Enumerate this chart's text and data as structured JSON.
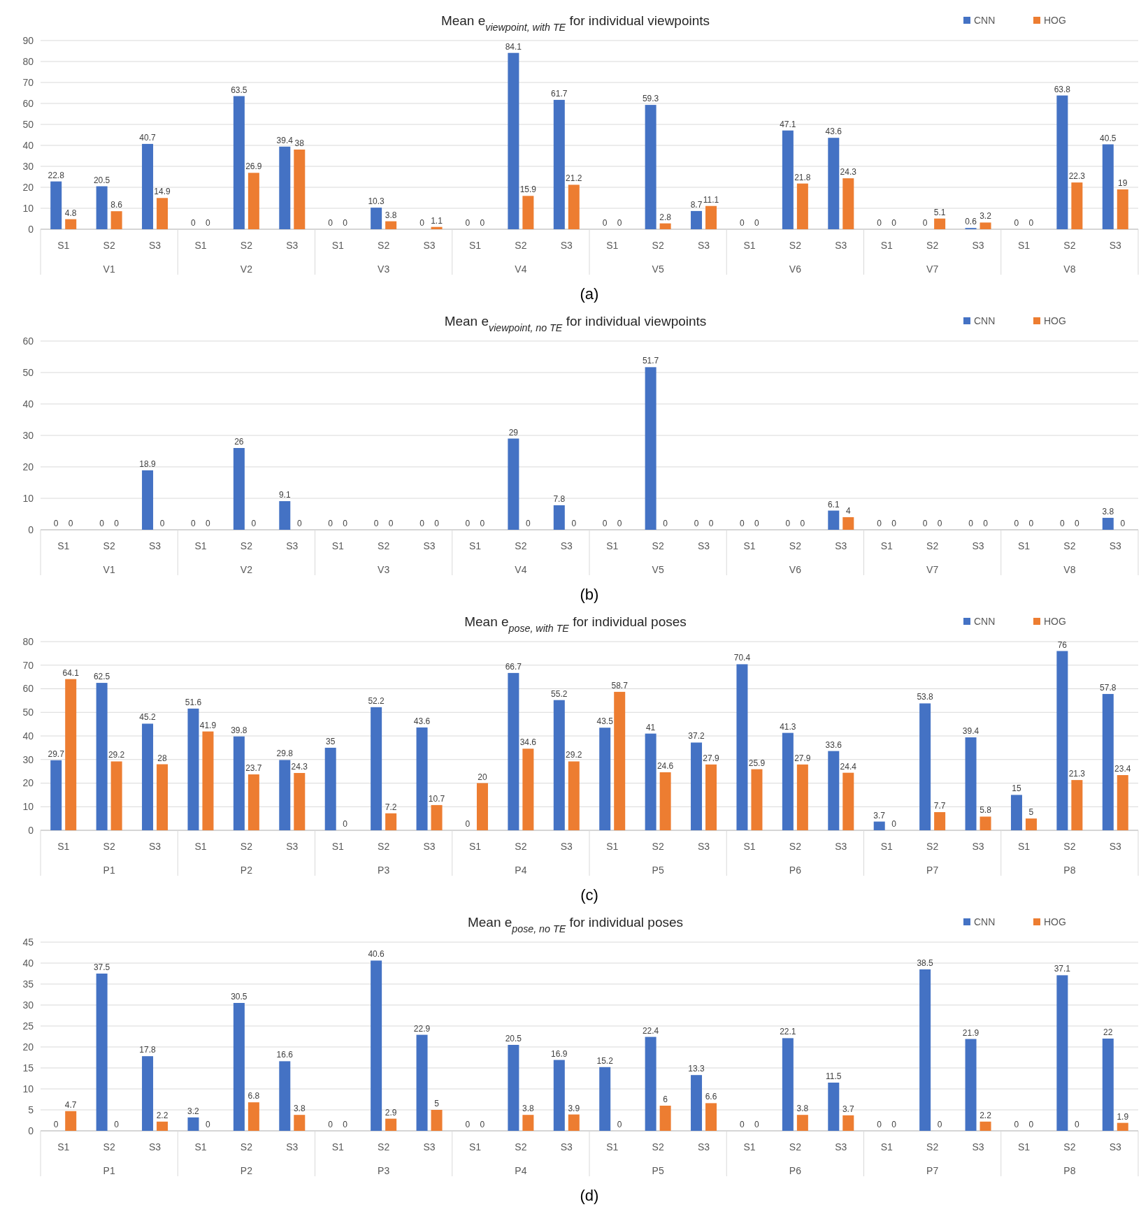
{
  "chart_data": [
    {
      "type": "bar",
      "title": "Mean e$_{viewpoint, with TE}$ for individual viewpoints",
      "categories": [
        "S1",
        "S2",
        "S3",
        "S1",
        "S2",
        "S3",
        "S1",
        "S2",
        "S3",
        "S1",
        "S2",
        "S3",
        "S1",
        "S2",
        "S3",
        "S1",
        "S2",
        "S3",
        "S1",
        "S2",
        "S3",
        "S1",
        "S2",
        "S3"
      ],
      "series": [
        {
          "name": "CNN",
          "color": "#4472c4",
          "values": [
            22.8,
            20.5,
            40.7,
            0,
            63.5,
            39.4,
            0,
            10.3,
            0,
            0,
            84.1,
            61.7,
            0,
            59.3,
            8.7,
            0,
            47.1,
            43.6,
            0,
            0,
            0.6,
            0,
            63.8,
            40.5
          ]
        },
        {
          "name": "HOG",
          "color": "#ed7d31",
          "values": [
            4.8,
            8.6,
            14.9,
            0,
            26.9,
            38,
            0,
            3.8,
            1.1,
            0,
            15.9,
            21.2,
            0,
            2.8,
            11.1,
            0,
            21.8,
            24.3,
            0,
            5.1,
            3.2,
            0,
            22.3,
            19
          ]
        }
      ],
      "ylim": [
        0,
        90
      ],
      "yticks": [
        0,
        10,
        20,
        30,
        40,
        50,
        60,
        70,
        80,
        90
      ],
      "grid": "y",
      "legend": "top right",
      "data_labels": true,
      "annotations": [
        "V1",
        "V2",
        "V3",
        "V4",
        "V5",
        "V6",
        "V7",
        "V8",
        "(a)"
      ]
    },
    {
      "type": "bar",
      "title": "Mean e$_{viewpoint, no TE}$ for individual viewpoints",
      "categories": [
        "S1",
        "S2",
        "S3",
        "S1",
        "S2",
        "S3",
        "S1",
        "S2",
        "S3",
        "S1",
        "S2",
        "S3",
        "S1",
        "S2",
        "S3",
        "S1",
        "S2",
        "S3",
        "S1",
        "S2",
        "S3",
        "S1",
        "S2",
        "S3"
      ],
      "series": [
        {
          "name": "CNN",
          "color": "#4472c4",
          "values": [
            0,
            0,
            18.9,
            0,
            26,
            9.1,
            0,
            0,
            0,
            0,
            29,
            7.8,
            0,
            51.7,
            0,
            0,
            0,
            6.1,
            0,
            0,
            0,
            0,
            0,
            3.8
          ]
        },
        {
          "name": "HOG",
          "color": "#ed7d31",
          "values": [
            0,
            0,
            0,
            0,
            0,
            0,
            0,
            0,
            0,
            0,
            0,
            0,
            0,
            0,
            0,
            0,
            0,
            4,
            0,
            0,
            0,
            0,
            0,
            0
          ]
        }
      ],
      "ylim": [
        0,
        60
      ],
      "yticks": [
        0,
        10,
        20,
        30,
        40,
        50,
        60
      ],
      "grid": "y",
      "legend": "top right",
      "data_labels": true,
      "annotations": [
        "V1",
        "V2",
        "V3",
        "V4",
        "V5",
        "V6",
        "V7",
        "V8",
        "(b)"
      ]
    },
    {
      "type": "bar",
      "title": "Mean e$_{pose, with TE}$ for individual poses",
      "categories": [
        "S1",
        "S2",
        "S3",
        "S1",
        "S2",
        "S3",
        "S1",
        "S2",
        "S3",
        "S1",
        "S2",
        "S3",
        "S1",
        "S2",
        "S3",
        "S1",
        "S2",
        "S3",
        "S1",
        "S2",
        "S3",
        "S1",
        "S2",
        "S3"
      ],
      "series": [
        {
          "name": "CNN",
          "color": "#4472c4",
          "values": [
            29.7,
            62.5,
            45.2,
            51.6,
            39.8,
            29.8,
            35,
            52.2,
            43.6,
            0,
            66.7,
            55.2,
            43.5,
            41,
            37.2,
            70.4,
            41.3,
            33.6,
            3.7,
            53.8,
            39.4,
            15,
            76,
            57.8
          ]
        },
        {
          "name": "HOG",
          "color": "#ed7d31",
          "values": [
            64.1,
            29.2,
            28,
            41.9,
            23.7,
            24.3,
            0,
            7.2,
            10.7,
            20,
            34.6,
            29.2,
            58.7,
            24.6,
            27.9,
            25.9,
            27.9,
            24.4,
            0,
            7.7,
            5.8,
            5,
            21.3,
            23.4
          ]
        }
      ],
      "ylim": [
        0,
        80
      ],
      "yticks": [
        0,
        10,
        20,
        30,
        40,
        50,
        60,
        70,
        80
      ],
      "grid": "y",
      "legend": "top right",
      "data_labels": true,
      "annotations": [
        "P1",
        "P2",
        "P3",
        "P4",
        "P5",
        "P6",
        "P7",
        "P8",
        "(c)"
      ]
    },
    {
      "type": "bar",
      "title": "Mean e$_{pose, no TE}$ for individual poses",
      "categories": [
        "S1",
        "S2",
        "S3",
        "S1",
        "S2",
        "S3",
        "S1",
        "S2",
        "S3",
        "S1",
        "S2",
        "S3",
        "S1",
        "S2",
        "S3",
        "S1",
        "S2",
        "S3",
        "S1",
        "S2",
        "S3",
        "S1",
        "S2",
        "S3"
      ],
      "series": [
        {
          "name": "CNN",
          "color": "#4472c4",
          "values": [
            0,
            37.5,
            17.8,
            3.2,
            30.5,
            16.6,
            0,
            40.6,
            22.9,
            0,
            20.5,
            16.9,
            15.2,
            22.4,
            13.3,
            0,
            22.1,
            11.5,
            0,
            38.5,
            21.9,
            0,
            37.1,
            22
          ]
        },
        {
          "name": "HOG",
          "color": "#ed7d31",
          "values": [
            4.7,
            0,
            2.2,
            0,
            6.8,
            3.8,
            0,
            2.9,
            5,
            0,
            3.8,
            3.9,
            0,
            6,
            6.6,
            0,
            3.8,
            3.7,
            0,
            0,
            2.2,
            0,
            0,
            1.9
          ]
        }
      ],
      "ylim": [
        0,
        45
      ],
      "yticks": [
        0,
        5,
        10,
        15,
        20,
        25,
        30,
        35,
        40,
        45
      ],
      "grid": "y",
      "legend": "top right",
      "data_labels": true,
      "annotations": [
        "P1",
        "P2",
        "P3",
        "P4",
        "P5",
        "P6",
        "P7",
        "P8",
        "(d)"
      ]
    }
  ]
}
